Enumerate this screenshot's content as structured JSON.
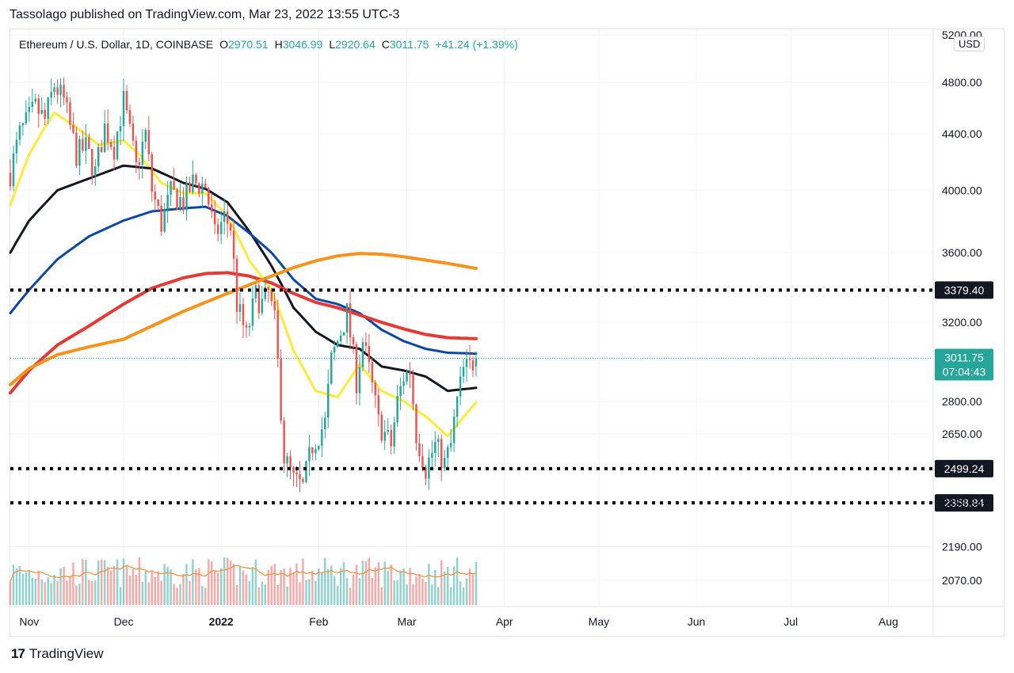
{
  "header": {
    "published": "Tassolago published on TradingView.com, Mar 23, 2022 13:55 UTC-3"
  },
  "legend": {
    "symbol": "Ethereum / U.S. Dollar, 1D, COINBASE",
    "open_key": "O",
    "open": "2970.51",
    "high_key": "H",
    "high": "3046.99",
    "low_key": "L",
    "low": "2920.64",
    "close_key": "C",
    "close": "3011.75",
    "change": "+41.24 (+1.39%)"
  },
  "currency_button": "USD",
  "footer": {
    "brand": "TradingView",
    "mark": "17"
  },
  "colors": {
    "up": "#26a69a",
    "down": "#ef5350",
    "ma_yellow": "#ffeb3b",
    "ma_black": "#131722",
    "ma_blue": "#0d47a1",
    "ma_red": "#e53935",
    "ma_orange": "#f7931a",
    "volume_ma": "#f28d3c",
    "level_line": "#000000",
    "price_tag": "#26a69a",
    "level_tag": "#131722"
  },
  "chart_data": {
    "type": "candlestick",
    "log_scale": true,
    "y_range": [
      1980,
      5250
    ],
    "x_range": [
      "2021-10-26",
      "2022-08-15"
    ],
    "grid": true,
    "y_ticks": [
      "5200.00",
      "4800.00",
      "4400.00",
      "4000.00",
      "3600.00",
      "3200.00",
      "2800.00",
      "2650.00",
      "2358.84",
      "2190.00",
      "2070.00"
    ],
    "x_ticks": [
      {
        "date": "2021-11-01",
        "label": "Nov",
        "bold": false
      },
      {
        "date": "2021-12-01",
        "label": "Dec",
        "bold": false
      },
      {
        "date": "2022-01-01",
        "label": "2022",
        "bold": true
      },
      {
        "date": "2022-02-01",
        "label": "Feb",
        "bold": false
      },
      {
        "date": "2022-03-01",
        "label": "Mar",
        "bold": false
      },
      {
        "date": "2022-04-01",
        "label": "Apr",
        "bold": false
      },
      {
        "date": "2022-05-01",
        "label": "May",
        "bold": false
      },
      {
        "date": "2022-06-01",
        "label": "Jun",
        "bold": false
      },
      {
        "date": "2022-07-01",
        "label": "Jul",
        "bold": false
      },
      {
        "date": "2022-08-01",
        "label": "Aug",
        "bold": false
      }
    ],
    "current_price": {
      "value": 3011.75,
      "label": "3011.75",
      "countdown": "07:04:43"
    },
    "levels": [
      {
        "value": 3379.4,
        "label": "3379.40"
      },
      {
        "value": 2499.24,
        "label": "2499.24"
      },
      {
        "value": 2358.84,
        "label": "2358.84"
      }
    ],
    "price_anchors": [
      [
        "2021-10-26",
        4120
      ],
      [
        "2021-10-29",
        4400
      ],
      [
        "2021-11-03",
        4600
      ],
      [
        "2021-11-06",
        4500
      ],
      [
        "2021-11-09",
        4780
      ],
      [
        "2021-11-12",
        4650
      ],
      [
        "2021-11-16",
        4250
      ],
      [
        "2021-11-19",
        4300
      ],
      [
        "2021-11-22",
        4120
      ],
      [
        "2021-11-25",
        4450
      ],
      [
        "2021-11-28",
        4300
      ],
      [
        "2021-12-01",
        4650
      ],
      [
        "2021-12-03",
        4400
      ],
      [
        "2021-12-05",
        4150
      ],
      [
        "2021-12-08",
        4400
      ],
      [
        "2021-12-10",
        4000
      ],
      [
        "2021-12-13",
        3780
      ],
      [
        "2021-12-16",
        3980
      ],
      [
        "2021-12-20",
        3920
      ],
      [
        "2021-12-23",
        4050
      ],
      [
        "2021-12-27",
        4030
      ],
      [
        "2021-12-30",
        3700
      ],
      [
        "2022-01-02",
        3820
      ],
      [
        "2022-01-04",
        3760
      ],
      [
        "2022-01-06",
        3300
      ],
      [
        "2022-01-09",
        3120
      ],
      [
        "2022-01-12",
        3350
      ],
      [
        "2022-01-14",
        3300
      ],
      [
        "2022-01-16",
        3360
      ],
      [
        "2022-01-18",
        3200
      ],
      [
        "2022-01-21",
        2550
      ],
      [
        "2022-01-24",
        2450
      ],
      [
        "2022-01-27",
        2420
      ],
      [
        "2022-01-30",
        2600
      ],
      [
        "2022-02-03",
        2700
      ],
      [
        "2022-02-05",
        3000
      ],
      [
        "2022-02-08",
        3150
      ],
      [
        "2022-02-10",
        3250
      ],
      [
        "2022-02-13",
        2900
      ],
      [
        "2022-02-15",
        3100
      ],
      [
        "2022-02-17",
        2950
      ],
      [
        "2022-02-20",
        2700
      ],
      [
        "2022-02-22",
        2650
      ],
      [
        "2022-02-24",
        2600
      ],
      [
        "2022-02-26",
        2800
      ],
      [
        "2022-02-28",
        2920
      ],
      [
        "2022-03-02",
        2950
      ],
      [
        "2022-03-04",
        2650
      ],
      [
        "2022-03-07",
        2500
      ],
      [
        "2022-03-10",
        2600
      ],
      [
        "2022-03-13",
        2520
      ],
      [
        "2022-03-15",
        2600
      ],
      [
        "2022-03-17",
        2800
      ],
      [
        "2022-03-19",
        2950
      ],
      [
        "2022-03-21",
        2970
      ],
      [
        "2022-03-23",
        3012
      ]
    ],
    "moving_averages": [
      {
        "color_key": "ma_yellow",
        "points": [
          [
            "2021-10-26",
            3900
          ],
          [
            "2021-11-01",
            4250
          ],
          [
            "2021-11-06",
            4450
          ],
          [
            "2021-11-09",
            4560
          ],
          [
            "2021-11-16",
            4450
          ],
          [
            "2021-11-23",
            4320
          ],
          [
            "2021-12-01",
            4350
          ],
          [
            "2021-12-06",
            4250
          ],
          [
            "2021-12-13",
            4050
          ],
          [
            "2021-12-20",
            3980
          ],
          [
            "2021-12-27",
            3980
          ],
          [
            "2022-01-03",
            3830
          ],
          [
            "2022-01-10",
            3550
          ],
          [
            "2022-01-17",
            3380
          ],
          [
            "2022-01-24",
            3050
          ],
          [
            "2022-01-31",
            2850
          ],
          [
            "2022-02-07",
            2820
          ],
          [
            "2022-02-14",
            2980
          ],
          [
            "2022-02-21",
            2850
          ],
          [
            "2022-02-28",
            2800
          ],
          [
            "2022-03-07",
            2730
          ],
          [
            "2022-03-14",
            2640
          ],
          [
            "2022-03-23",
            2795
          ]
        ]
      },
      {
        "color_key": "ma_black",
        "points": [
          [
            "2021-10-26",
            3600
          ],
          [
            "2021-11-01",
            3800
          ],
          [
            "2021-11-10",
            4000
          ],
          [
            "2021-11-20",
            4080
          ],
          [
            "2021-12-01",
            4170
          ],
          [
            "2021-12-10",
            4150
          ],
          [
            "2021-12-20",
            4050
          ],
          [
            "2021-12-27",
            4010
          ],
          [
            "2022-01-03",
            3920
          ],
          [
            "2022-01-10",
            3730
          ],
          [
            "2022-01-17",
            3520
          ],
          [
            "2022-01-24",
            3280
          ],
          [
            "2022-01-31",
            3150
          ],
          [
            "2022-02-07",
            3080
          ],
          [
            "2022-02-14",
            3060
          ],
          [
            "2022-02-21",
            2970
          ],
          [
            "2022-02-28",
            2950
          ],
          [
            "2022-03-07",
            2920
          ],
          [
            "2022-03-14",
            2850
          ],
          [
            "2022-03-23",
            2865
          ]
        ]
      },
      {
        "color_key": "ma_blue",
        "points": [
          [
            "2021-10-26",
            3250
          ],
          [
            "2021-11-01",
            3380
          ],
          [
            "2021-11-10",
            3560
          ],
          [
            "2021-11-20",
            3700
          ],
          [
            "2021-12-01",
            3800
          ],
          [
            "2021-12-10",
            3860
          ],
          [
            "2021-12-20",
            3880
          ],
          [
            "2021-12-27",
            3890
          ],
          [
            "2022-01-03",
            3830
          ],
          [
            "2022-01-10",
            3720
          ],
          [
            "2022-01-17",
            3600
          ],
          [
            "2022-01-24",
            3440
          ],
          [
            "2022-01-31",
            3330
          ],
          [
            "2022-02-07",
            3300
          ],
          [
            "2022-02-14",
            3250
          ],
          [
            "2022-02-21",
            3160
          ],
          [
            "2022-02-28",
            3100
          ],
          [
            "2022-03-07",
            3060
          ],
          [
            "2022-03-14",
            3040
          ],
          [
            "2022-03-23",
            3035
          ]
        ]
      },
      {
        "color_key": "ma_red",
        "points": [
          [
            "2021-10-26",
            2840
          ],
          [
            "2021-11-01",
            2950
          ],
          [
            "2021-11-10",
            3080
          ],
          [
            "2021-11-20",
            3180
          ],
          [
            "2021-12-01",
            3300
          ],
          [
            "2021-12-10",
            3390
          ],
          [
            "2021-12-20",
            3450
          ],
          [
            "2021-12-27",
            3475
          ],
          [
            "2022-01-03",
            3480
          ],
          [
            "2022-01-10",
            3460
          ],
          [
            "2022-01-17",
            3420
          ],
          [
            "2022-01-24",
            3360
          ],
          [
            "2022-01-31",
            3310
          ],
          [
            "2022-02-07",
            3280
          ],
          [
            "2022-02-14",
            3240
          ],
          [
            "2022-02-21",
            3200
          ],
          [
            "2022-02-28",
            3165
          ],
          [
            "2022-03-07",
            3135
          ],
          [
            "2022-03-14",
            3118
          ],
          [
            "2022-03-23",
            3113
          ]
        ]
      },
      {
        "color_key": "ma_orange",
        "points": [
          [
            "2021-10-26",
            2880
          ],
          [
            "2021-11-01",
            2960
          ],
          [
            "2021-11-10",
            3030
          ],
          [
            "2021-11-20",
            3070
          ],
          [
            "2021-12-01",
            3110
          ],
          [
            "2021-12-10",
            3180
          ],
          [
            "2021-12-20",
            3260
          ],
          [
            "2021-12-27",
            3310
          ],
          [
            "2022-01-03",
            3360
          ],
          [
            "2022-01-10",
            3410
          ],
          [
            "2022-01-17",
            3460
          ],
          [
            "2022-01-24",
            3510
          ],
          [
            "2022-01-31",
            3550
          ],
          [
            "2022-02-07",
            3580
          ],
          [
            "2022-02-14",
            3595
          ],
          [
            "2022-02-21",
            3590
          ],
          [
            "2022-02-28",
            3575
          ],
          [
            "2022-03-07",
            3555
          ],
          [
            "2022-03-14",
            3535
          ],
          [
            "2022-03-23",
            3505
          ]
        ]
      }
    ]
  }
}
